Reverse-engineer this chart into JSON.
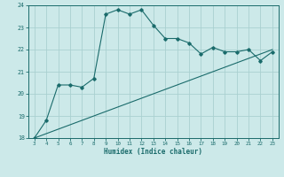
{
  "xlabel": "Humidex (Indice chaleur)",
  "bg_color": "#cce9e9",
  "grid_color": "#aad0d0",
  "line_color": "#1a6b6b",
  "curve_x": [
    3,
    4,
    5,
    6,
    7,
    8,
    9,
    10,
    11,
    12,
    13,
    14,
    15,
    16,
    17,
    18,
    19,
    20,
    21,
    22,
    23
  ],
  "curve_y": [
    18.0,
    18.8,
    20.4,
    20.4,
    20.3,
    20.7,
    23.6,
    23.8,
    23.6,
    23.8,
    23.1,
    22.5,
    22.5,
    22.3,
    21.8,
    22.1,
    21.9,
    21.9,
    22.0,
    21.5,
    21.9
  ],
  "line_x": [
    3,
    23
  ],
  "line_y": [
    18.0,
    22.0
  ],
  "ylim": [
    18,
    24
  ],
  "xlim": [
    3,
    23
  ],
  "yticks": [
    18,
    19,
    20,
    21,
    22,
    23,
    24
  ],
  "xticks": [
    3,
    4,
    5,
    6,
    7,
    8,
    9,
    10,
    11,
    12,
    13,
    14,
    15,
    16,
    17,
    18,
    19,
    20,
    21,
    22,
    23
  ]
}
